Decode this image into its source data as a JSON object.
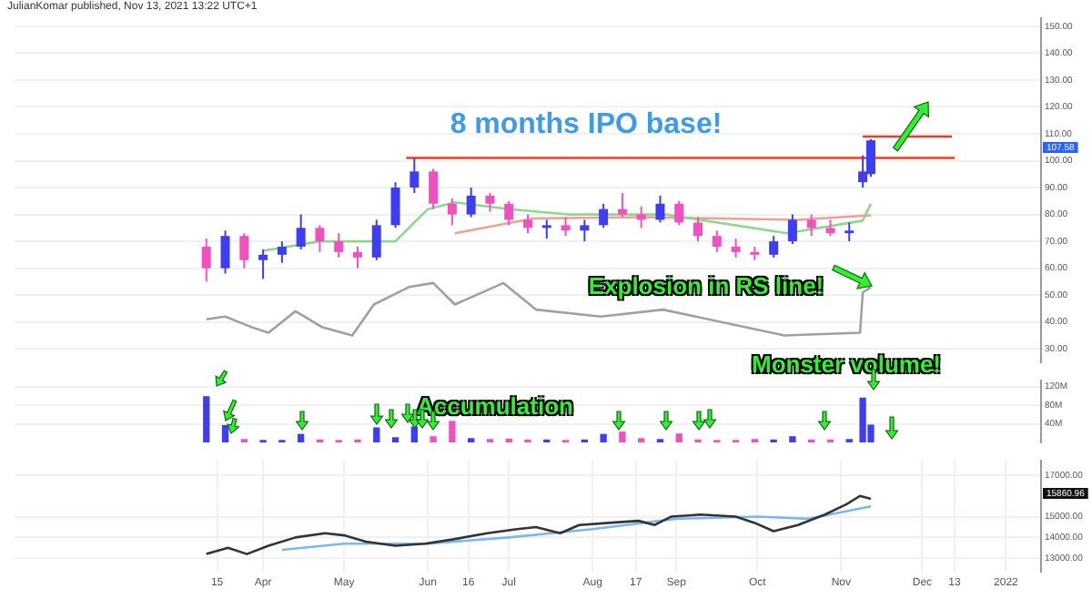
{
  "chart_data": [
    {
      "type": "candlestick",
      "title": "JulianKomar published, Nov 13, 2021 13:22 UTC+1",
      "x": [
        "2021-03-11",
        "2021-03-18",
        "2021-03-25",
        "2021-04-01",
        "2021-04-08",
        "2021-04-15",
        "2021-04-22",
        "2021-04-29",
        "2021-05-06",
        "2021-05-13",
        "2021-05-20",
        "2021-05-27",
        "2021-06-03",
        "2021-06-10",
        "2021-06-17",
        "2021-06-24",
        "2021-07-01",
        "2021-07-08",
        "2021-07-15",
        "2021-07-22",
        "2021-07-29",
        "2021-08-05",
        "2021-08-12",
        "2021-08-19",
        "2021-08-26",
        "2021-09-02",
        "2021-09-09",
        "2021-09-16",
        "2021-09-23",
        "2021-09-30",
        "2021-10-07",
        "2021-10-14",
        "2021-10-21",
        "2021-10-28",
        "2021-11-04",
        "2021-11-09",
        "2021-11-12"
      ],
      "ohlc": [
        [
          68,
          71,
          55,
          60
        ],
        [
          60,
          74,
          58,
          72
        ],
        [
          72,
          73,
          60,
          63
        ],
        [
          63,
          67,
          56,
          65
        ],
        [
          65,
          70,
          62,
          68
        ],
        [
          68,
          80,
          67,
          75
        ],
        [
          75,
          76,
          66,
          70
        ],
        [
          70,
          73,
          64,
          66
        ],
        [
          66,
          68,
          60,
          64
        ],
        [
          64,
          78,
          63,
          76
        ],
        [
          76,
          92,
          75,
          90
        ],
        [
          90,
          101,
          88,
          96
        ],
        [
          96,
          97,
          82,
          84
        ],
        [
          84,
          86,
          76,
          80
        ],
        [
          80,
          90,
          79,
          87
        ],
        [
          87,
          88,
          81,
          84
        ],
        [
          84,
          85,
          76,
          78
        ],
        [
          78,
          80,
          73,
          75
        ],
        [
          75,
          78,
          71,
          76
        ],
        [
          76,
          79,
          72,
          74
        ],
        [
          74,
          78,
          70,
          76
        ],
        [
          76,
          84,
          75,
          82
        ],
        [
          82,
          88,
          79,
          80
        ],
        [
          80,
          83,
          75,
          78
        ],
        [
          78,
          87,
          77,
          84
        ],
        [
          84,
          85,
          76,
          77
        ],
        [
          77,
          79,
          70,
          72
        ],
        [
          72,
          74,
          66,
          68
        ],
        [
          68,
          71,
          64,
          66
        ],
        [
          66,
          68,
          63,
          65
        ],
        [
          65,
          72,
          64,
          70
        ],
        [
          70,
          80,
          69,
          78
        ],
        [
          78,
          80,
          72,
          75
        ],
        [
          75,
          78,
          72,
          73
        ],
        [
          73,
          77,
          70,
          74
        ],
        [
          92,
          102,
          90,
          96
        ],
        [
          95,
          108,
          94,
          107.58
        ]
      ],
      "colors": [
        "#f050c0",
        "#3d3df2",
        "#f050c0",
        "#3d3df2",
        "#3d3df2",
        "#3d3df2",
        "#f050c0",
        "#f050c0",
        "#f050c0",
        "#3d3df2",
        "#3d3df2",
        "#3d3df2",
        "#f050c0",
        "#f050c0",
        "#3d3df2",
        "#f050c0",
        "#f050c0",
        "#f050c0",
        "#3d3df2",
        "#f050c0",
        "#3d3df2",
        "#3d3df2",
        "#f050c0",
        "#f050c0",
        "#3d3df2",
        "#f050c0",
        "#f050c0",
        "#f050c0",
        "#f050c0",
        "#f050c0",
        "#3d3df2",
        "#3d3df2",
        "#f050c0",
        "#f050c0",
        "#3d3df2",
        "#3d3df2",
        "#3d3df2"
      ],
      "series": [
        {
          "type": "line",
          "color": "#8fd68f",
          "x": [
            "2021-04-01",
            "2021-04-22",
            "2021-05-20",
            "2021-06-01",
            "2021-06-11",
            "2021-07-01",
            "2021-07-23",
            "2021-08-28",
            "2021-10-12",
            "2021-11-09",
            "2021-11-12"
          ],
          "values": [
            66.5,
            70,
            70,
            82,
            84.5,
            82,
            80,
            80,
            73,
            77.7,
            84
          ]
        },
        {
          "type": "line",
          "color": "#f0a090",
          "x": [
            "2021-06-11",
            "2021-07-10",
            "2021-08-20",
            "2021-10-16",
            "2021-11-12"
          ],
          "values": [
            73,
            78.5,
            79,
            78,
            79.7
          ]
        },
        {
          "type": "line",
          "color": "#a0a0a0",
          "x": [
            "2021-03-11",
            "2021-03-18",
            "2021-03-28",
            "2021-04-03",
            "2021-04-13",
            "2021-04-23",
            "2021-05-04",
            "2021-05-12",
            "2021-05-25",
            "2021-06-03",
            "2021-06-11",
            "2021-06-29",
            "2021-07-11",
            "2021-08-04",
            "2021-08-27",
            "2021-10-11",
            "2021-11-08",
            "2021-11-09",
            "2021-11-12"
          ],
          "values": [
            41,
            42,
            38,
            36,
            44,
            38,
            35,
            46.5,
            53,
            54.5,
            46.5,
            54.5,
            44.6,
            42,
            44.6,
            35,
            36,
            51,
            53
          ]
        },
        {
          "type": "line",
          "color": "#f23a22",
          "x": [
            "2021-05-24",
            "2021-12-13"
          ],
          "values": [
            101,
            101
          ]
        },
        {
          "type": "line",
          "color": "#f23a22",
          "x": [
            "2021-11-09",
            "2021-12-12"
          ],
          "values": [
            109,
            109
          ]
        }
      ],
      "xlim": [
        "2020-12-30",
        "2022-01-14"
      ],
      "xticks": [
        {
          "value": "2021-03-15",
          "label": null
        },
        {
          "value": "2021-04-01",
          "label": null
        },
        {
          "value": "2021-05-01",
          "label": null
        },
        {
          "value": "2021-06-01",
          "label": null
        },
        {
          "value": "2021-06-16",
          "label": null
        },
        {
          "value": "2021-07-01",
          "label": null
        },
        {
          "value": "2021-08-01",
          "label": null
        },
        {
          "value": "2021-08-17",
          "label": null
        },
        {
          "value": "2021-09-01",
          "label": null
        },
        {
          "value": "2021-10-01",
          "label": null
        },
        {
          "value": "2021-11-01",
          "label": null
        },
        {
          "value": "2021-12-01",
          "label": null
        },
        {
          "value": "2021-12-13",
          "label": null
        },
        {
          "value": "2022-01-01",
          "label": null
        }
      ],
      "ylim": [
        25,
        153
      ],
      "yticks": [
        {
          "value": 30,
          "label": "30.00"
        },
        {
          "value": 40,
          "label": "40.00"
        },
        {
          "value": 50,
          "label": "50.00"
        },
        {
          "value": 60,
          "label": "60.00"
        },
        {
          "value": 70,
          "label": "70.00"
        },
        {
          "value": 80,
          "label": "80.00"
        },
        {
          "value": 90,
          "label": "90.00"
        },
        {
          "value": 100,
          "label": "100.00"
        },
        {
          "value": 110,
          "label": "110.00"
        },
        {
          "value": 120,
          "label": "120.00"
        },
        {
          "value": 130,
          "label": "130.00"
        },
        {
          "value": 140,
          "label": "140.00"
        },
        {
          "value": 150,
          "label": "150.00"
        }
      ],
      "annotations": [
        "8 months IPO base!",
        "Explosion in RS line!",
        "Monster volume!",
        "107.58"
      ],
      "grid": true,
      "tick_labels": "y"
    },
    {
      "type": "bar",
      "x": [
        "2021-03-11",
        "2021-03-18",
        "2021-03-25",
        "2021-04-01",
        "2021-04-08",
        "2021-04-15",
        "2021-04-22",
        "2021-04-29",
        "2021-05-06",
        "2021-05-13",
        "2021-05-20",
        "2021-05-27",
        "2021-06-03",
        "2021-06-10",
        "2021-06-17",
        "2021-06-24",
        "2021-07-01",
        "2021-07-08",
        "2021-07-15",
        "2021-07-22",
        "2021-07-29",
        "2021-08-05",
        "2021-08-12",
        "2021-08-19",
        "2021-08-26",
        "2021-09-02",
        "2021-09-09",
        "2021-09-16",
        "2021-09-23",
        "2021-09-30",
        "2021-10-07",
        "2021-10-14",
        "2021-10-21",
        "2021-10-28",
        "2021-11-04",
        "2021-11-09",
        "2021-11-12"
      ],
      "values": [
        98,
        36,
        6,
        4,
        4,
        17,
        5,
        4,
        5,
        31,
        10,
        33,
        12,
        45,
        8,
        6,
        7,
        5,
        5,
        4,
        5,
        17,
        22,
        8,
        6,
        18,
        5,
        4,
        4,
        6,
        5,
        12,
        5,
        5,
        6,
        95,
        37
      ],
      "xticks": [
        {
          "value": "2021-03-15",
          "label": null
        },
        {
          "value": "2021-04-01",
          "label": null
        },
        {
          "value": "2021-05-01",
          "label": null
        },
        {
          "value": "2021-06-01",
          "label": null
        },
        {
          "value": "2021-06-16",
          "label": null
        },
        {
          "value": "2021-07-01",
          "label": null
        },
        {
          "value": "2021-08-01",
          "label": null
        },
        {
          "value": "2021-08-17",
          "label": null
        },
        {
          "value": "2021-09-01",
          "label": null
        },
        {
          "value": "2021-10-01",
          "label": null
        },
        {
          "value": "2021-11-01",
          "label": null
        },
        {
          "value": "2021-12-01",
          "label": null
        },
        {
          "value": "2021-12-13",
          "label": null
        },
        {
          "value": "2022-01-01",
          "label": null
        }
      ],
      "colors": [
        "#3d3df2",
        "#3d3df2",
        "#f050c0",
        "#3d3df2",
        "#3d3df2",
        "#3d3df2",
        "#f050c0",
        "#f050c0",
        "#f050c0",
        "#3d3df2",
        "#3d3df2",
        "#3d3df2",
        "#f050c0",
        "#f050c0",
        "#3d3df2",
        "#f050c0",
        "#f050c0",
        "#f050c0",
        "#3d3df2",
        "#f050c0",
        "#3d3df2",
        "#3d3df2",
        "#f050c0",
        "#f050c0",
        "#3d3df2",
        "#f050c0",
        "#f050c0",
        "#f050c0",
        "#f050c0",
        "#f050c0",
        "#3d3df2",
        "#3d3df2",
        "#f050c0",
        "#f050c0",
        "#3d3df2",
        "#3d3df2",
        "#3d3df2"
      ],
      "ylim": [
        0,
        133
      ],
      "xlim": [
        "2020-12-30",
        "2022-01-14"
      ],
      "yticks": [
        {
          "value": 40,
          "label": "40M"
        },
        {
          "value": 80,
          "label": "80M"
        },
        {
          "value": 120,
          "label": "120M"
        }
      ],
      "annotations": [
        "Accumulation"
      ],
      "grid": true,
      "tick_labels": "y"
    },
    {
      "type": "line",
      "series": [
        {
          "color": "#333333",
          "x": [
            "2021-03-11",
            "2021-03-19",
            "2021-03-26",
            "2021-04-03",
            "2021-04-13",
            "2021-04-24",
            "2021-05-01",
            "2021-05-09",
            "2021-05-20",
            "2021-05-31",
            "2021-06-10",
            "2021-06-23",
            "2021-07-04",
            "2021-07-11",
            "2021-07-20",
            "2021-07-27",
            "2021-08-07",
            "2021-08-18",
            "2021-08-24",
            "2021-08-30",
            "2021-09-10",
            "2021-09-23",
            "2021-09-30",
            "2021-10-07",
            "2021-10-16",
            "2021-10-26",
            "2021-11-03",
            "2021-11-08",
            "2021-11-12"
          ],
          "values": [
            13200,
            13500,
            13200,
            13600,
            14000,
            14200,
            14100,
            13800,
            13600,
            13700,
            13900,
            14200,
            14400,
            14500,
            14200,
            14600,
            14700,
            14800,
            14600,
            15000,
            15100,
            15000,
            14700,
            14300,
            14600,
            15100,
            15600,
            16000,
            15860.96
          ]
        },
        {
          "color": "#7ab8ee",
          "x": [
            "2021-04-08",
            "2021-05-01",
            "2021-06-01",
            "2021-07-01",
            "2021-08-01",
            "2021-09-01",
            "2021-10-01",
            "2021-10-20",
            "2021-11-12"
          ],
          "values": [
            13400,
            13700,
            13700,
            14000,
            14400,
            14900,
            15000,
            14900,
            15500
          ]
        }
      ],
      "xlim": [
        "2020-12-30",
        "2022-01-14"
      ],
      "xticks": [
        {
          "value": "2021-03-15",
          "label": "15"
        },
        {
          "value": "2021-04-01",
          "label": "Apr"
        },
        {
          "value": "2021-05-01",
          "label": "May"
        },
        {
          "value": "2021-06-01",
          "label": "Jun"
        },
        {
          "value": "2021-06-16",
          "label": "16"
        },
        {
          "value": "2021-07-01",
          "label": "Jul"
        },
        {
          "value": "2021-08-01",
          "label": "Aug"
        },
        {
          "value": "2021-08-17",
          "label": "17"
        },
        {
          "value": "2021-09-01",
          "label": "Sep"
        },
        {
          "value": "2021-10-01",
          "label": "Oct"
        },
        {
          "value": "2021-11-01",
          "label": "Nov"
        },
        {
          "value": "2021-12-01",
          "label": "Dec"
        },
        {
          "value": "2021-12-13",
          "label": "13"
        },
        {
          "value": "2022-01-01",
          "label": "2022"
        }
      ],
      "ylim": [
        12350,
        17700
      ],
      "yticks": [
        {
          "value": 13000,
          "label": "13000.00"
        },
        {
          "value": 14000,
          "label": "14000.00"
        },
        {
          "value": 15000,
          "label": "15000.00"
        },
        {
          "value": 17000,
          "label": "17000.00"
        }
      ],
      "annotations": [
        "15860.96"
      ],
      "grid": true
    }
  ]
}
